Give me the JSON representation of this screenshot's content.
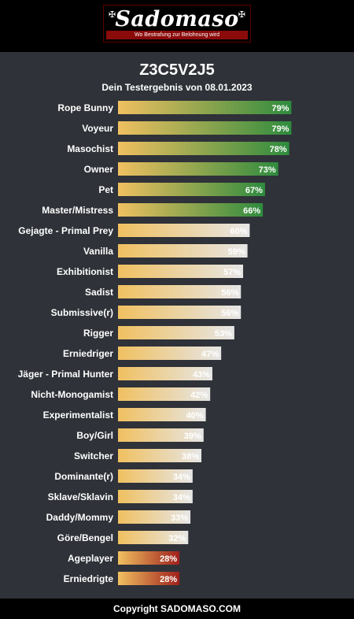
{
  "header": {
    "logo_text": "Sadomaso",
    "logo_tagline": "Wo Bestrafung zur Belohnung wird"
  },
  "page": {
    "title": "Z3C5V2J5",
    "subtitle": "Dein Testergebnis von 08.01.2023"
  },
  "colors": {
    "background": "#2f3238",
    "bar_start": "#f0c060",
    "bar_end_green": "#2e8b3e",
    "bar_end_grey": "#e6e6e6",
    "bar_end_red": "#a0201c",
    "brand_red": "#8b0a0a"
  },
  "chart_data": {
    "type": "bar",
    "orientation": "horizontal",
    "unit": "%",
    "xlim": [
      0,
      100
    ],
    "categories": [
      "Rope Bunny",
      "Voyeur",
      "Masochist",
      "Owner",
      "Pet",
      "Master/Mistress",
      "Gejagte - Primal Prey",
      "Vanilla",
      "Exhibitionist",
      "Sadist",
      "Submissive(r)",
      "Rigger",
      "Erniedriger",
      "Jäger - Primal Hunter",
      "Nicht-Monogamist",
      "Experimentalist",
      "Boy/Girl",
      "Switcher",
      "Dominante(r)",
      "Sklave/Sklavin",
      "Daddy/Mommy",
      "Göre/Bengel",
      "Ageplayer",
      "Erniedrigte"
    ],
    "values": [
      79,
      79,
      78,
      73,
      67,
      66,
      60,
      59,
      57,
      56,
      56,
      53,
      47,
      43,
      42,
      40,
      39,
      38,
      34,
      34,
      33,
      32,
      28,
      28
    ],
    "value_labels": [
      "79%",
      "79%",
      "78%",
      "73%",
      "67%",
      "66%",
      "60%",
      "59%",
      "57%",
      "56%",
      "56%",
      "53%",
      "47%",
      "43%",
      "42%",
      "40%",
      "39%",
      "38%",
      "34%",
      "34%",
      "33%",
      "32%",
      "28%",
      "28%"
    ],
    "bar_style": [
      "green",
      "green",
      "green",
      "green",
      "green",
      "green",
      "grey",
      "grey",
      "grey",
      "grey",
      "grey",
      "grey",
      "grey",
      "grey",
      "grey",
      "grey",
      "grey",
      "grey",
      "grey",
      "grey",
      "grey",
      "grey",
      "red",
      "red"
    ]
  },
  "footer": {
    "copyright": "Copyright SADOMASO.COM"
  }
}
